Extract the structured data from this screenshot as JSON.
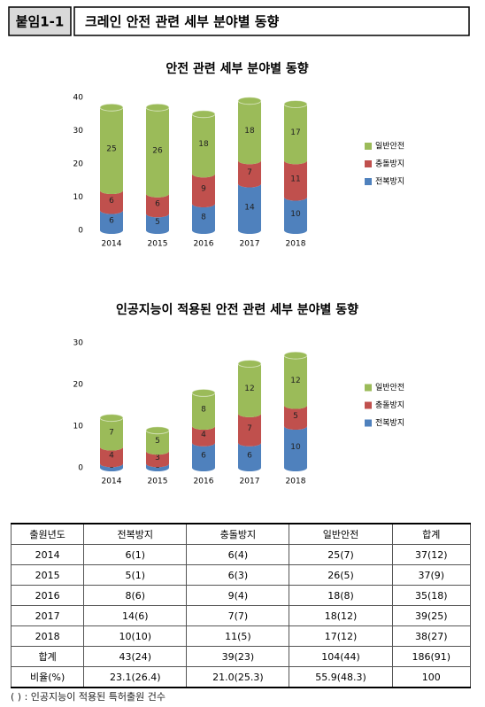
{
  "header": {
    "label": "붙임1-1",
    "title": "크레인 안전 관련 세부 분야별 동향"
  },
  "chart_data": [
    {
      "type": "bar",
      "stacked": true,
      "title": "안전 관련 세부 분야별 동향",
      "categories": [
        "2014",
        "2015",
        "2016",
        "2017",
        "2018"
      ],
      "series": [
        {
          "name": "전복방지",
          "color": "#4f81bd",
          "values": [
            6,
            5,
            8,
            14,
            10
          ]
        },
        {
          "name": "충돌방지",
          "color": "#c0504d",
          "values": [
            6,
            6,
            9,
            7,
            11
          ]
        },
        {
          "name": "일반안전",
          "color": "#9bbb59",
          "values": [
            25,
            26,
            18,
            18,
            17
          ]
        }
      ],
      "ylim": [
        0,
        40
      ],
      "yticks": [
        0,
        10,
        20,
        30,
        40
      ],
      "grid": false,
      "legend": "right"
    },
    {
      "type": "bar",
      "stacked": true,
      "title": "인공지능이 적용된 안전 관련 세부 분야별 동향",
      "categories": [
        "2014",
        "2015",
        "2016",
        "2017",
        "2018"
      ],
      "series": [
        {
          "name": "전복방지",
          "color": "#4f81bd",
          "values": [
            1,
            1,
            6,
            6,
            10
          ]
        },
        {
          "name": "충돌방지",
          "color": "#c0504d",
          "values": [
            4,
            3,
            4,
            7,
            5
          ]
        },
        {
          "name": "일반안전",
          "color": "#9bbb59",
          "values": [
            7,
            5,
            8,
            12,
            12
          ]
        }
      ],
      "ylim": [
        0,
        30
      ],
      "yticks": [
        0,
        10,
        20,
        30
      ],
      "grid": false,
      "legend": "right"
    }
  ],
  "table": {
    "header": [
      "출원년도",
      "전복방지",
      "충돌방지",
      "일반안전",
      "합계"
    ],
    "rows": [
      [
        "2014",
        "6(1)",
        "6(4)",
        "25(7)",
        "37(12)"
      ],
      [
        "2015",
        "5(1)",
        "6(3)",
        "26(5)",
        "37(9)"
      ],
      [
        "2016",
        "8(6)",
        "9(4)",
        "18(8)",
        "35(18)"
      ],
      [
        "2017",
        "14(6)",
        "7(7)",
        "18(12)",
        "39(25)"
      ],
      [
        "2018",
        "10(10)",
        "11(5)",
        "17(12)",
        "38(27)"
      ],
      [
        "합계",
        "43(24)",
        "39(23)",
        "104(44)",
        "186(91)"
      ],
      [
        "비율(%)",
        "23.1(26.4)",
        "21.0(25.3)",
        "55.9(48.3)",
        "100"
      ]
    ]
  },
  "note": "( ) : 인공지능이 적용된 특허출원 건수"
}
